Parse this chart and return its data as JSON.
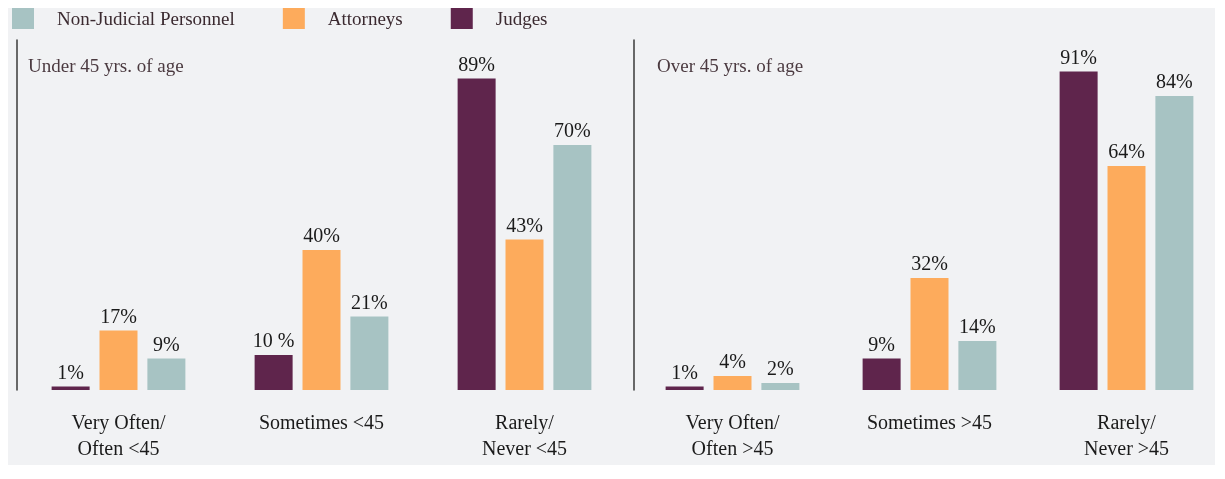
{
  "chart_data": [
    {
      "type": "bar",
      "title": "Under 45 yrs. of age",
      "categories": [
        "Very Often/ Often <45",
        "Sometimes <45",
        "Rarely/ Never <45"
      ],
      "series": [
        {
          "name": "Judges",
          "color": "#5f254c",
          "values": [
            1,
            10,
            89
          ],
          "value_labels": [
            "1%",
            "10 %",
            "89%"
          ]
        },
        {
          "name": "Attorneys",
          "color": "#fdab5c",
          "values": [
            17,
            40,
            43
          ],
          "value_labels": [
            "17%",
            "40%",
            "43%"
          ]
        },
        {
          "name": "Non-Judicial Personnel",
          "color": "#a7c3c3",
          "values": [
            9,
            21,
            70
          ],
          "value_labels": [
            "9%",
            "21%",
            "70%"
          ]
        }
      ],
      "legend": "top left",
      "tick_labels": "x"
    },
    {
      "type": "bar",
      "title": "Over 45 yrs. of age",
      "categories": [
        "Very Often/ Often >45",
        "Sometimes >45",
        "Rarely/ Never >45"
      ],
      "series": [
        {
          "color": "#5f254c",
          "values": [
            1,
            9,
            91
          ],
          "value_labels": [
            "1%",
            "9%",
            "91%"
          ]
        },
        {
          "color": "#fdab5c",
          "values": [
            4,
            32,
            64
          ],
          "value_labels": [
            "4%",
            "32%",
            "64%"
          ]
        },
        {
          "color": "#a7c3c3",
          "values": [
            2,
            14,
            84
          ],
          "value_labels": [
            "2%",
            "14%",
            "84%"
          ]
        }
      ],
      "tick_labels": "x"
    }
  ]
}
